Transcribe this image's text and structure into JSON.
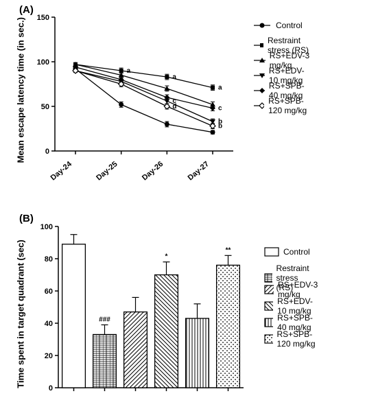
{
  "panelA": {
    "label": "(A)",
    "ylabel": "Mean escape latency time (in sec.)",
    "ylim": [
      0,
      150
    ],
    "ytick_step": 50,
    "xlabels": [
      "Day-24",
      "Day-25",
      "Day-26",
      "Day-27"
    ],
    "legend": [
      {
        "label": "Control",
        "marker": "circle-filled"
      },
      {
        "label": "Restraint stress (RS)",
        "marker": "square-filled"
      },
      {
        "label": "RS+EDV-3 mg/kg",
        "marker": "triangle-up-filled"
      },
      {
        "label": "RS+EDV-10 mg/kg",
        "marker": "triangle-down-filled"
      },
      {
        "label": "RS+SPB-40 mg/kg",
        "marker": "diamond-filled"
      },
      {
        "label": "RS+SPB-120 mg/kg",
        "marker": "diamond-open"
      }
    ],
    "series": [
      {
        "name": "Control",
        "y": [
          92,
          52,
          30,
          21
        ],
        "err": [
          2,
          3,
          3,
          2
        ]
      },
      {
        "name": "RS",
        "y": [
          97,
          90,
          83,
          71
        ],
        "err": [
          2,
          3,
          3,
          3
        ],
        "sig": [
          "",
          "a",
          "a",
          "a"
        ]
      },
      {
        "name": "RS+EDV-3",
        "y": [
          97,
          85,
          70,
          52
        ],
        "err": [
          2,
          3,
          3,
          3
        ],
        "sig": [
          "",
          "",
          "",
          ""
        ]
      },
      {
        "name": "RS+EDV-10",
        "y": [
          90,
          78,
          56,
          33
        ],
        "err": [
          2,
          4,
          3,
          3
        ],
        "sig": [
          "",
          "",
          "c",
          "b"
        ]
      },
      {
        "name": "RS+SPB-40",
        "y": [
          94,
          80,
          60,
          48
        ],
        "err": [
          2,
          3,
          3,
          3
        ],
        "sig": [
          "",
          "",
          "",
          "c"
        ]
      },
      {
        "name": "RS+SPB-120",
        "y": [
          90,
          75,
          50,
          28
        ],
        "err": [
          2,
          3,
          3,
          3
        ],
        "sig": [
          "",
          "",
          "d",
          "b"
        ]
      }
    ],
    "line_color": "#000000",
    "background_color": "#ffffff"
  },
  "panelB": {
    "label": "(B)",
    "ylabel": "Time spent in target quadrant (sec)",
    "ylim": [
      0,
      100
    ],
    "ytick_step": 20,
    "legend": [
      {
        "label": "Control",
        "pattern": "open"
      },
      {
        "label": "Restraint stress (RS)",
        "pattern": "brick"
      },
      {
        "label": "RS+EDV-3 mg/kg",
        "pattern": "diag-left"
      },
      {
        "label": "RS+EDV-10 mg/kg",
        "pattern": "diag-right"
      },
      {
        "label": "RS+SPB-40 mg/kg",
        "pattern": "vertical"
      },
      {
        "label": "RS+SPB-120 mg/kg",
        "pattern": "dots"
      }
    ],
    "bars": [
      {
        "value": 89,
        "err": 6,
        "sig": "",
        "pattern": "open"
      },
      {
        "value": 33,
        "err": 6,
        "sig": "###",
        "pattern": "brick"
      },
      {
        "value": 47,
        "err": 9,
        "sig": "",
        "pattern": "diag-left"
      },
      {
        "value": 70,
        "err": 8,
        "sig": "*",
        "pattern": "diag-right"
      },
      {
        "value": 43,
        "err": 9,
        "sig": "",
        "pattern": "vertical"
      },
      {
        "value": 76,
        "err": 6,
        "sig": "**",
        "pattern": "dots"
      }
    ],
    "bar_border_color": "#000000",
    "bar_width": 0.75,
    "background_color": "#ffffff"
  }
}
